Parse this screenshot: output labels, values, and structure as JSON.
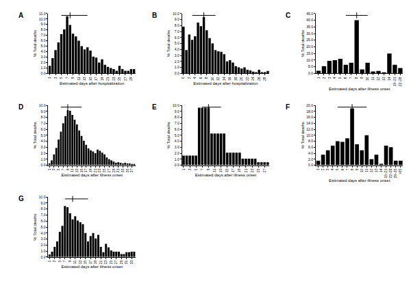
{
  "chart_data": [
    {
      "type": "bar",
      "title": "A",
      "xlabel": "Estimated days after hospitalization",
      "ylabel": "% Total deaths",
      "color": "#000000",
      "x": [
        1,
        2,
        3,
        4,
        5,
        6,
        7,
        8,
        9,
        10,
        11,
        12,
        13,
        14,
        15,
        16,
        17,
        18,
        19,
        20,
        21,
        22,
        23,
        24,
        25,
        26,
        27,
        28,
        29,
        30
      ],
      "values": [
        1.4,
        2.8,
        4.3,
        5.7,
        7.2,
        8.1,
        10.5,
        8.9,
        7.3,
        6.8,
        6.0,
        5.0,
        4.4,
        4.8,
        4.2,
        3.1,
        2.9,
        2.0,
        2.6,
        1.6,
        1.2,
        1.0,
        0.8,
        0.5,
        1.4,
        0.8,
        0.5,
        0.5,
        0.8,
        0.8
      ],
      "xlim": [
        0.5,
        30.5
      ],
      "xticks": [
        1,
        3,
        5,
        7,
        9,
        11,
        13,
        15,
        17,
        19,
        21,
        23,
        25,
        27,
        29
      ],
      "ylim": [
        0,
        11
      ],
      "yticks": [
        {
          "value": 0,
          "label": "0.0"
        },
        {
          "value": 1,
          "label": "1.0"
        },
        {
          "value": 2,
          "label": "2.0"
        },
        {
          "value": 3,
          "label": "3.0"
        },
        {
          "value": 4,
          "label": "4.0"
        },
        {
          "value": 5,
          "label": "5.0"
        },
        {
          "value": 6,
          "label": "6.0"
        },
        {
          "value": 7,
          "label": "7.0"
        },
        {
          "value": 8,
          "label": "8.0"
        },
        {
          "value": 9,
          "label": "9.0"
        },
        {
          "value": 10,
          "label": "10.0"
        },
        {
          "value": 11,
          "label": "11.0"
        }
      ],
      "median": 8,
      "iqr": [
        5,
        14
      ]
    },
    {
      "type": "bar",
      "title": "B",
      "xlabel": "Estimated days after hospitalization",
      "ylabel": "% Total deaths",
      "color": "#000000",
      "x": [
        0,
        1,
        2,
        3,
        4,
        5,
        6,
        7,
        8,
        9,
        10,
        11,
        12,
        13,
        14,
        15,
        16,
        17,
        18,
        19,
        20,
        21,
        22,
        23,
        24,
        25,
        26,
        27,
        28,
        29
      ],
      "values": [
        7.8,
        3.9,
        6.5,
        5.6,
        6.2,
        8.5,
        7.9,
        9.4,
        7.2,
        5.9,
        5.0,
        3.9,
        3.7,
        3.6,
        3.2,
        2.0,
        2.2,
        1.8,
        1.2,
        1.0,
        0.8,
        1.0,
        0.6,
        0.5,
        0.3,
        0.2,
        0.6,
        0.2,
        0.2,
        0.4
      ],
      "xlim": [
        -0.5,
        29.5
      ],
      "xticks": [
        0,
        2,
        4,
        6,
        8,
        10,
        12,
        14,
        16,
        18,
        20,
        22,
        24,
        26,
        28
      ],
      "ylim": [
        0,
        10
      ],
      "yticks": [
        {
          "value": 0,
          "label": "0.0"
        },
        {
          "value": 1,
          "label": "1.0"
        },
        {
          "value": 2,
          "label": "2.0"
        },
        {
          "value": 3,
          "label": "3.0"
        },
        {
          "value": 4,
          "label": "4.0"
        },
        {
          "value": 5,
          "label": "5.0"
        },
        {
          "value": 6,
          "label": "6.0"
        },
        {
          "value": 7,
          "label": "7.0"
        },
        {
          "value": 8,
          "label": "8.0"
        },
        {
          "value": 9,
          "label": "9.0"
        },
        {
          "value": 10,
          "label": "10.0"
        }
      ],
      "median": 7,
      "iqr": [
        3,
        11
      ]
    },
    {
      "type": "bar",
      "title": "C",
      "xlabel": "Estimated days after illness onset",
      "ylabel": "% Total deaths",
      "color": "#000000",
      "categories": [
        "1",
        "2",
        "3",
        "4",
        "5",
        "6",
        "7",
        "8",
        "9",
        "10",
        "11",
        "12",
        "13",
        "14",
        "15–21",
        "22–28"
      ],
      "values": [
        2,
        5.5,
        9.5,
        10,
        11,
        6.5,
        8,
        40,
        3,
        8,
        1.5,
        1.8,
        0.5,
        15,
        6.5,
        4
      ],
      "ylim": [
        0,
        45
      ],
      "yticks": [
        {
          "value": 0,
          "label": "0.0"
        },
        {
          "value": 5,
          "label": "5.0"
        },
        {
          "value": 10,
          "label": "10.0"
        },
        {
          "value": 15,
          "label": "15.0"
        },
        {
          "value": 20,
          "label": "20.0"
        },
        {
          "value": 25,
          "label": "25.0"
        },
        {
          "value": 30,
          "label": "30.0"
        },
        {
          "value": 35,
          "label": "35.0"
        },
        {
          "value": 40,
          "label": "40.0"
        },
        {
          "value": 45,
          "label": "45.0"
        }
      ],
      "median": 8,
      "iqr": [
        6,
        10
      ]
    },
    {
      "type": "bar",
      "title": "D",
      "xlabel": "Estimated days after illness onset",
      "ylabel": "% Total deaths",
      "color": "#000000",
      "x": [
        1,
        2,
        3,
        4,
        5,
        6,
        7,
        8,
        9,
        10,
        11,
        12,
        13,
        14,
        15,
        16,
        17,
        18,
        19,
        20,
        21,
        22,
        23,
        24,
        25,
        26,
        27,
        28,
        29,
        30,
        31,
        32,
        33,
        34,
        35,
        36,
        37,
        38
      ],
      "values": [
        0.3,
        0.8,
        1.8,
        2.9,
        4.3,
        5.6,
        7.0,
        8.2,
        9.2,
        9.1,
        8.4,
        7.6,
        6.8,
        5.8,
        4.9,
        4.1,
        3.4,
        2.8,
        2.5,
        2.3,
        2.0,
        2.6,
        2.4,
        2.1,
        1.8,
        1.3,
        1.0,
        0.8,
        0.6,
        0.4,
        0.5,
        0.4,
        0.3,
        0.4,
        0.3,
        0.3,
        0.2,
        0.2
      ],
      "xlim": [
        0.5,
        38.5
      ],
      "xticks": [
        1,
        3,
        5,
        7,
        9,
        11,
        13,
        15,
        17,
        19,
        21,
        23,
        25,
        27,
        29,
        31,
        33,
        35,
        37
      ],
      "ylim": [
        0,
        10
      ],
      "yticks": [
        {
          "value": 0,
          "label": "0.0"
        },
        {
          "value": 1,
          "label": "1.0"
        },
        {
          "value": 2,
          "label": "2.0"
        },
        {
          "value": 3,
          "label": "3.0"
        },
        {
          "value": 4,
          "label": "4.0"
        },
        {
          "value": 5,
          "label": "5.0"
        },
        {
          "value": 6,
          "label": "6.0"
        },
        {
          "value": 7,
          "label": "7.0"
        },
        {
          "value": 8,
          "label": "8.0"
        },
        {
          "value": 9,
          "label": "9.0"
        },
        {
          "value": 10,
          "label": "10.0"
        }
      ],
      "median": 9,
      "iqr": [
        6,
        15
      ]
    },
    {
      "type": "bar",
      "title": "E",
      "xlabel": "Estimated days after illness onset",
      "ylabel": "% Total deaths",
      "color": "#000000",
      "x": [
        1,
        2,
        3,
        4,
        5,
        6,
        7,
        8,
        9,
        10,
        11,
        12,
        13,
        14,
        15,
        16,
        17,
        18,
        19,
        20,
        21,
        22,
        23,
        24,
        25,
        26,
        27,
        28
      ],
      "values": [
        1.6,
        1.6,
        1.6,
        1.6,
        1.6,
        9.6,
        9.6,
        9.6,
        9.6,
        5.3,
        5.3,
        5.3,
        5.3,
        5.3,
        2.1,
        2.1,
        2.1,
        2.1,
        2.1,
        1.1,
        1.1,
        1.1,
        1.1,
        1.1,
        0.5,
        0.5,
        0.5,
        0.5
      ],
      "xlim": [
        0.5,
        28.5
      ],
      "xticks": [
        1,
        3,
        5,
        7,
        9,
        11,
        13,
        15,
        17,
        19,
        21,
        23,
        25,
        27
      ],
      "ylim": [
        0,
        10
      ],
      "yticks": [
        {
          "value": 0,
          "label": "0.0"
        },
        {
          "value": 1,
          "label": "1.0"
        },
        {
          "value": 2,
          "label": "2.0"
        },
        {
          "value": 3,
          "label": "3.0"
        },
        {
          "value": 4,
          "label": "4.0"
        },
        {
          "value": 5,
          "label": "5.0"
        },
        {
          "value": 6,
          "label": "6.0"
        },
        {
          "value": 7,
          "label": "7.0"
        },
        {
          "value": 8,
          "label": "8.0"
        },
        {
          "value": 9,
          "label": "9.0"
        },
        {
          "value": 10,
          "label": "10.0"
        }
      ],
      "median": 9,
      "iqr": [
        7,
        13
      ]
    },
    {
      "type": "bar",
      "title": "F",
      "xlabel": "Estimated days after illness onset",
      "ylabel": "% Total deaths",
      "color": "#000000",
      "categories": [
        "1",
        "2",
        "3",
        "4",
        "5",
        "6",
        "7",
        "8",
        "9",
        "10",
        "11",
        "12",
        "13",
        "14",
        "15–21",
        "22–28",
        "29–35",
        ">35"
      ],
      "values": [
        1.5,
        3.5,
        5,
        6.5,
        8,
        7.8,
        9,
        19,
        7,
        5,
        10,
        2,
        3.5,
        0.5,
        6.5,
        6,
        1.5,
        1.5
      ],
      "ylim": [
        0,
        20
      ],
      "yticks": [
        {
          "value": 0,
          "label": "0.0"
        },
        {
          "value": 2,
          "label": "2.0"
        },
        {
          "value": 4,
          "label": "4.0"
        },
        {
          "value": 6,
          "label": "6.0"
        },
        {
          "value": 8,
          "label": "8.0"
        },
        {
          "value": 10,
          "label": "10.0"
        },
        {
          "value": 12,
          "label": "12.0"
        },
        {
          "value": 14,
          "label": "14.0"
        },
        {
          "value": 16,
          "label": "16.0"
        },
        {
          "value": 18,
          "label": "18.0"
        },
        {
          "value": 20,
          "label": "20.0"
        }
      ],
      "median": 8,
      "iqr": [
        5,
        11
      ]
    },
    {
      "type": "bar",
      "title": "G",
      "xlabel": "Estimated days after illness onset",
      "ylabel": "% Total deaths",
      "color": "#000000",
      "x": [
        1,
        2,
        3,
        4,
        5,
        6,
        7,
        8,
        9,
        10,
        11,
        12,
        13,
        14,
        15,
        16,
        17,
        18,
        19,
        20,
        21,
        22,
        23,
        24,
        25,
        26,
        27,
        28,
        29,
        30,
        31,
        32,
        33,
        34
      ],
      "values": [
        0.4,
        0.9,
        1.7,
        2.6,
        4.2,
        5.2,
        8.5,
        8.3,
        7.3,
        6.3,
        6.8,
        6.1,
        5.8,
        5.5,
        4.0,
        2.6,
        3.5,
        4.0,
        3.1,
        3.7,
        1.7,
        0.8,
        2.2,
        1.6,
        1.1,
        0.9,
        0.9,
        0.9,
        0.5,
        0.5,
        0.8,
        0.8,
        0.9,
        0.9
      ],
      "xlim": [
        0.5,
        34.5
      ],
      "xticks": [
        1,
        3,
        5,
        7,
        9,
        11,
        13,
        15,
        17,
        19,
        21,
        23,
        25,
        27,
        29,
        31,
        33
      ],
      "ylim": [
        0,
        10
      ],
      "yticks": [
        {
          "value": 0,
          "label": "0.0"
        },
        {
          "value": 1,
          "label": "1.0"
        },
        {
          "value": 2,
          "label": "2.0"
        },
        {
          "value": 3,
          "label": "3.0"
        },
        {
          "value": 4,
          "label": "4.0"
        },
        {
          "value": 5,
          "label": "5.0"
        },
        {
          "value": 6,
          "label": "6.0"
        },
        {
          "value": 7,
          "label": "7.0"
        },
        {
          "value": 8,
          "label": "8.0"
        },
        {
          "value": 9,
          "label": "9.0"
        },
        {
          "value": 10,
          "label": "10.0"
        }
      ],
      "median": 10,
      "iqr": [
        7,
        16
      ]
    }
  ]
}
